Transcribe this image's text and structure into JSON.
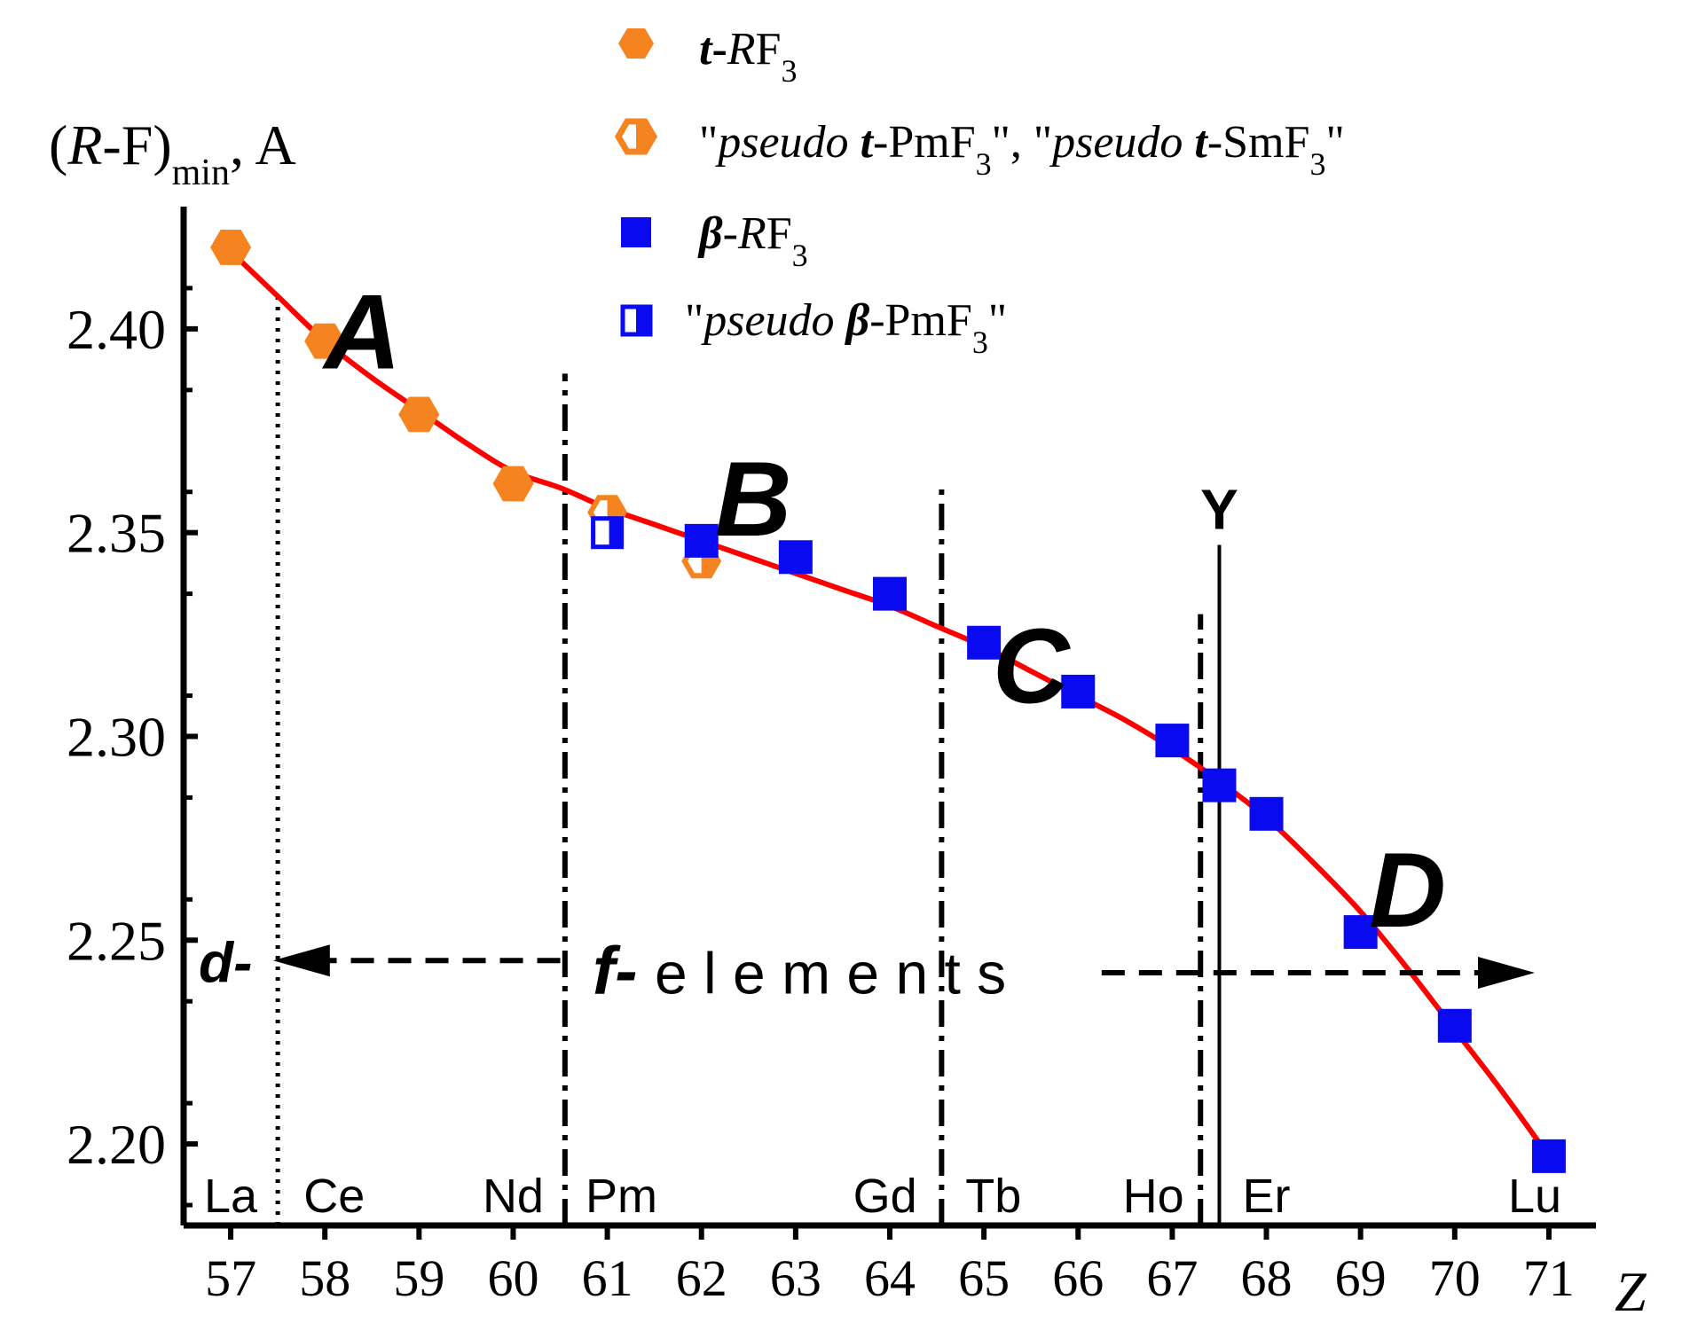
{
  "chart_data": {
    "type": "scatter",
    "ylabel": {
      "open": "(",
      "R": "R",
      "rest": "-F)",
      "sub": "min",
      "unit": ", A"
    },
    "xlabel": "Z",
    "xlim": [
      56.5,
      71.5
    ],
    "ylim": [
      2.18,
      2.43
    ],
    "x_ticks": [
      57,
      58,
      59,
      60,
      61,
      62,
      63,
      64,
      65,
      66,
      67,
      68,
      69,
      70,
      71
    ],
    "y_ticks": [
      2.2,
      2.25,
      2.3,
      2.35,
      2.4
    ],
    "y_tick_labels": [
      "2.20",
      "2.25",
      "2.30",
      "2.35",
      "2.40"
    ],
    "series": [
      {
        "name": "t-RF3",
        "marker": "filled-hexagon",
        "color": "#F5831F",
        "points": [
          {
            "x": 57,
            "y": 2.42
          },
          {
            "x": 58,
            "y": 2.397
          },
          {
            "x": 59,
            "y": 2.379
          },
          {
            "x": 60,
            "y": 2.362
          }
        ]
      },
      {
        "name": "pseudo t-PmF3, pseudo t-SmF3",
        "marker": "half-hexagon",
        "color": "#F5831F",
        "points": [
          {
            "x": 61,
            "y": 2.355
          },
          {
            "x": 62,
            "y": 2.343
          }
        ]
      },
      {
        "name": "β-RF3",
        "marker": "filled-square",
        "color": "#0A0AF0",
        "points": [
          {
            "x": 62,
            "y": 2.348
          },
          {
            "x": 63,
            "y": 2.344
          },
          {
            "x": 64,
            "y": 2.335
          },
          {
            "x": 65,
            "y": 2.323
          },
          {
            "x": 66,
            "y": 2.311
          },
          {
            "x": 67,
            "y": 2.299
          },
          {
            "x": 67.5,
            "y": 2.288
          },
          {
            "x": 68,
            "y": 2.281
          },
          {
            "x": 69,
            "y": 2.252
          },
          {
            "x": 70,
            "y": 2.229
          },
          {
            "x": 71,
            "y": 2.197
          }
        ]
      },
      {
        "name": "pseudo β-PmF3",
        "marker": "half-square",
        "color": "#0A0AF0",
        "points": [
          {
            "x": 61,
            "y": 2.35
          }
        ]
      }
    ],
    "fit_curve": {
      "color": "#FF0000",
      "points": [
        {
          "x": 57,
          "y": 2.419
        },
        {
          "x": 57.5,
          "y": 2.408
        },
        {
          "x": 58,
          "y": 2.397
        },
        {
          "x": 58.5,
          "y": 2.388
        },
        {
          "x": 59,
          "y": 2.38
        },
        {
          "x": 59.5,
          "y": 2.372
        },
        {
          "x": 60,
          "y": 2.365
        },
        {
          "x": 60.5,
          "y": 2.361
        },
        {
          "x": 61,
          "y": 2.356
        },
        {
          "x": 61.5,
          "y": 2.352
        },
        {
          "x": 62,
          "y": 2.348
        },
        {
          "x": 62.5,
          "y": 2.344
        },
        {
          "x": 63,
          "y": 2.34
        },
        {
          "x": 63.5,
          "y": 2.336
        },
        {
          "x": 64,
          "y": 2.332
        },
        {
          "x": 64.5,
          "y": 2.327
        },
        {
          "x": 65,
          "y": 2.322
        },
        {
          "x": 65.5,
          "y": 2.316
        },
        {
          "x": 66,
          "y": 2.31
        },
        {
          "x": 66.5,
          "y": 2.304
        },
        {
          "x": 67,
          "y": 2.297
        },
        {
          "x": 67.5,
          "y": 2.289
        },
        {
          "x": 68,
          "y": 2.28
        },
        {
          "x": 68.5,
          "y": 2.269
        },
        {
          "x": 69,
          "y": 2.257
        },
        {
          "x": 69.5,
          "y": 2.243
        },
        {
          "x": 70,
          "y": 2.228
        },
        {
          "x": 70.5,
          "y": 2.213
        },
        {
          "x": 71,
          "y": 2.197
        }
      ]
    },
    "vertical_lines": [
      {
        "x": 57.5,
        "style": "dotted",
        "top": 2.408
      },
      {
        "x": 60.55,
        "style": "dashdot",
        "top": 2.389
      },
      {
        "x": 64.55,
        "style": "dashdot",
        "top": 2.362
      },
      {
        "x": 67.3,
        "style": "dashdot",
        "top": 2.33
      },
      {
        "x": 67.5,
        "style": "solid",
        "top": 2.347
      }
    ],
    "region_labels": [
      {
        "text": "A",
        "x": 58.4,
        "y": 2.399
      },
      {
        "text": "B",
        "x": 62.55,
        "y": 2.358
      },
      {
        "text": "C",
        "x": 65.5,
        "y": 2.317
      },
      {
        "text": "D",
        "x": 69.5,
        "y": 2.262
      }
    ],
    "element_labels": [
      {
        "text": "La",
        "x": 57.0
      },
      {
        "text": "Ce",
        "x": 58.1
      },
      {
        "text": "Nd",
        "x": 60.0
      },
      {
        "text": "Pm",
        "x": 61.15
      },
      {
        "text": "Gd",
        "x": 63.95
      },
      {
        "text": "Tb",
        "x": 65.1
      },
      {
        "text": "Ho",
        "x": 66.8
      },
      {
        "text": "Er",
        "x": 68.0
      },
      {
        "text": "Lu",
        "x": 70.85
      }
    ],
    "y_marker_label": {
      "text": "Y",
      "x": 67.5
    },
    "annotation": {
      "d_label": "d-",
      "f_label": "f-",
      "elements": "e l e m e n t s",
      "left_arrow": {
        "from_x": 60.5,
        "to_x": 57.45,
        "y": 2.245
      },
      "right_arrow": {
        "from_x": 66.25,
        "to_x": 70.85,
        "y": 2.242
      }
    },
    "legend": {
      "placement": "top-center",
      "entries": [
        {
          "marker": "filled-hexagon",
          "color": "#F5831F",
          "italic_bold": "t",
          "plain": "-",
          "italic": "R",
          "rest": "F",
          "sub": "3"
        },
        {
          "marker": "half-hexagon",
          "color": "#F5831F",
          "q1": "\"",
          "it1": "pseudo ",
          "b1": "t",
          "r1": "-PmF",
          "s1": "3",
          "q2": "\",  \"",
          "it2": "pseudo ",
          "b2": "t",
          "r2": "-SmF",
          "s2": "3",
          "q3": "\""
        },
        {
          "marker": "filled-square",
          "color": "#0A0AF0",
          "italic_bold": "β",
          "plain": "-",
          "italic": "R",
          "rest": "F",
          "sub": "3"
        },
        {
          "marker": "half-square",
          "color": "#0A0AF0",
          "q1": "\"",
          "it1": "pseudo ",
          "b1": "β",
          "r1": "-PmF",
          "s1": "3",
          "q2": "\""
        }
      ]
    }
  }
}
